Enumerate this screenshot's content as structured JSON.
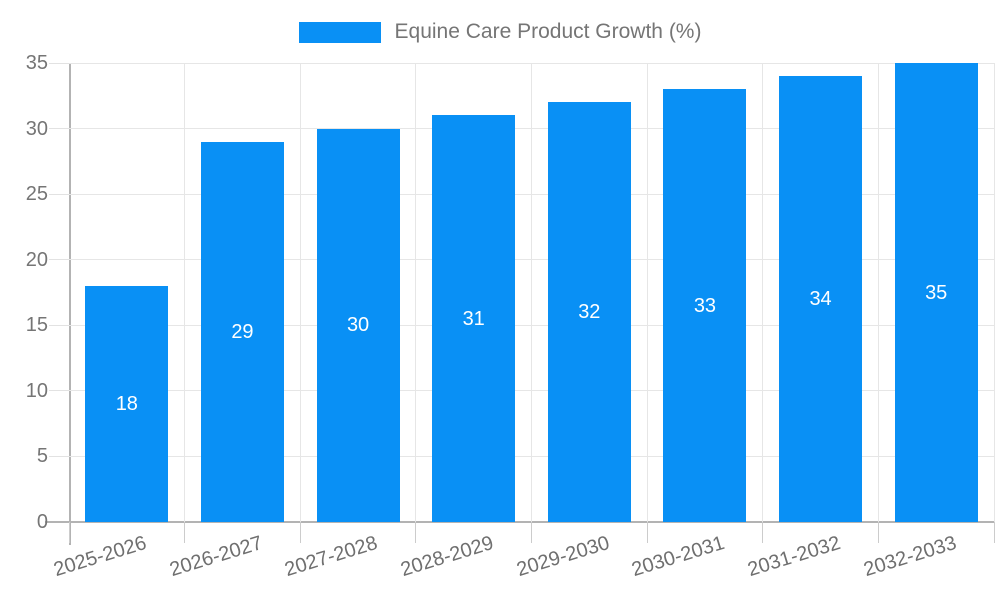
{
  "legend": {
    "label": "Equine Care Product Growth (%)",
    "swatch_color": "#0990f5"
  },
  "chart_data": {
    "type": "bar",
    "title": "Equine Care Product Growth (%)",
    "categories": [
      "2025-2026",
      "2026-2027",
      "2027-2028",
      "2028-2029",
      "2029-2030",
      "2030-2031",
      "2031-2032",
      "2032-2033"
    ],
    "values": [
      18,
      29,
      30,
      31,
      32,
      33,
      34,
      35
    ],
    "xlabel": "",
    "ylabel": "",
    "ylim": [
      0,
      35
    ],
    "yticks": [
      0,
      5,
      10,
      15,
      20,
      25,
      30,
      35
    ],
    "grid": true,
    "legend_position": "top",
    "bar_color": "#0990f5",
    "value_label_color": "#ffffff",
    "x_label_rotation_deg": -17
  },
  "colors": {
    "axis": "#b3b3b3",
    "gridline": "#e6e6e6",
    "tick_text": "#757575",
    "legend_text": "#757575",
    "background": "#ffffff"
  }
}
